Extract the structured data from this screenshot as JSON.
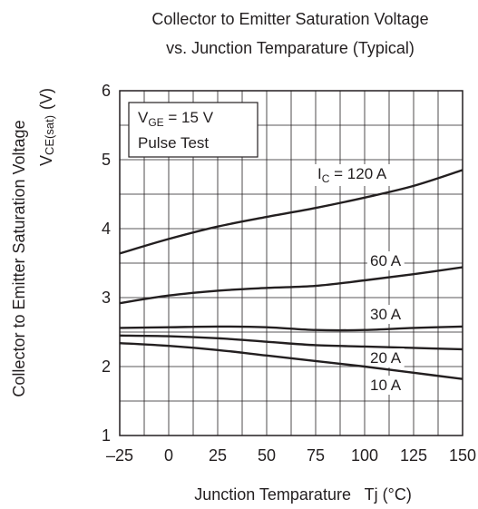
{
  "chart_data": {
    "type": "line",
    "title_lines": [
      "Collector to Emitter Saturation Voltage",
      "vs. Junction Temparature (Typical)"
    ],
    "xlabel": "Junction Temparature   Tj (°C)",
    "ylabel_line1": "Collector to Emitter Saturation Voltage",
    "ylabel_line2": {
      "main": "V",
      "sub": "CE(sat)",
      "unit": "(V)"
    },
    "xlim": [
      -25,
      150
    ],
    "ylim": [
      1,
      6
    ],
    "x_ticks": [
      -25,
      0,
      25,
      50,
      75,
      100,
      125,
      150
    ],
    "x_tick_labels": [
      "–25",
      "0",
      "25",
      "50",
      "75",
      "100",
      "125",
      "150"
    ],
    "y_ticks": [
      1,
      2,
      3,
      4,
      5,
      6
    ],
    "y_tick_labels": [
      "1",
      "2",
      "3",
      "4",
      "5",
      "6"
    ],
    "grid": true,
    "condition_box": {
      "line1": {
        "main": "V",
        "sub": "GE",
        "rest": " = 15 V"
      },
      "line2": "Pulse Test"
    },
    "series": [
      {
        "label": "I",
        "label_sub": "C",
        "label_rest": " = 120 A",
        "x": [
          -25,
          0,
          25,
          50,
          75,
          100,
          125,
          150
        ],
        "y": [
          3.64,
          3.85,
          4.03,
          4.17,
          4.3,
          4.45,
          4.62,
          4.85
        ]
      },
      {
        "label": "60 A",
        "x": [
          -25,
          0,
          25,
          50,
          75,
          100,
          125,
          150
        ],
        "y": [
          2.92,
          3.03,
          3.1,
          3.14,
          3.17,
          3.25,
          3.34,
          3.44
        ]
      },
      {
        "label": "30 A",
        "x": [
          -25,
          0,
          25,
          50,
          75,
          100,
          125,
          150
        ],
        "y": [
          2.56,
          2.57,
          2.58,
          2.57,
          2.53,
          2.53,
          2.56,
          2.58
        ]
      },
      {
        "label": "20 A",
        "x": [
          -25,
          0,
          25,
          50,
          75,
          100,
          125,
          150
        ],
        "y": [
          2.45,
          2.44,
          2.41,
          2.36,
          2.31,
          2.29,
          2.27,
          2.25
        ]
      },
      {
        "label": "10 A",
        "x": [
          -25,
          0,
          25,
          50,
          75,
          100,
          125,
          150
        ],
        "y": [
          2.34,
          2.3,
          2.24,
          2.16,
          2.08,
          2.0,
          1.91,
          1.82
        ]
      }
    ],
    "line_color": "#231f20"
  }
}
